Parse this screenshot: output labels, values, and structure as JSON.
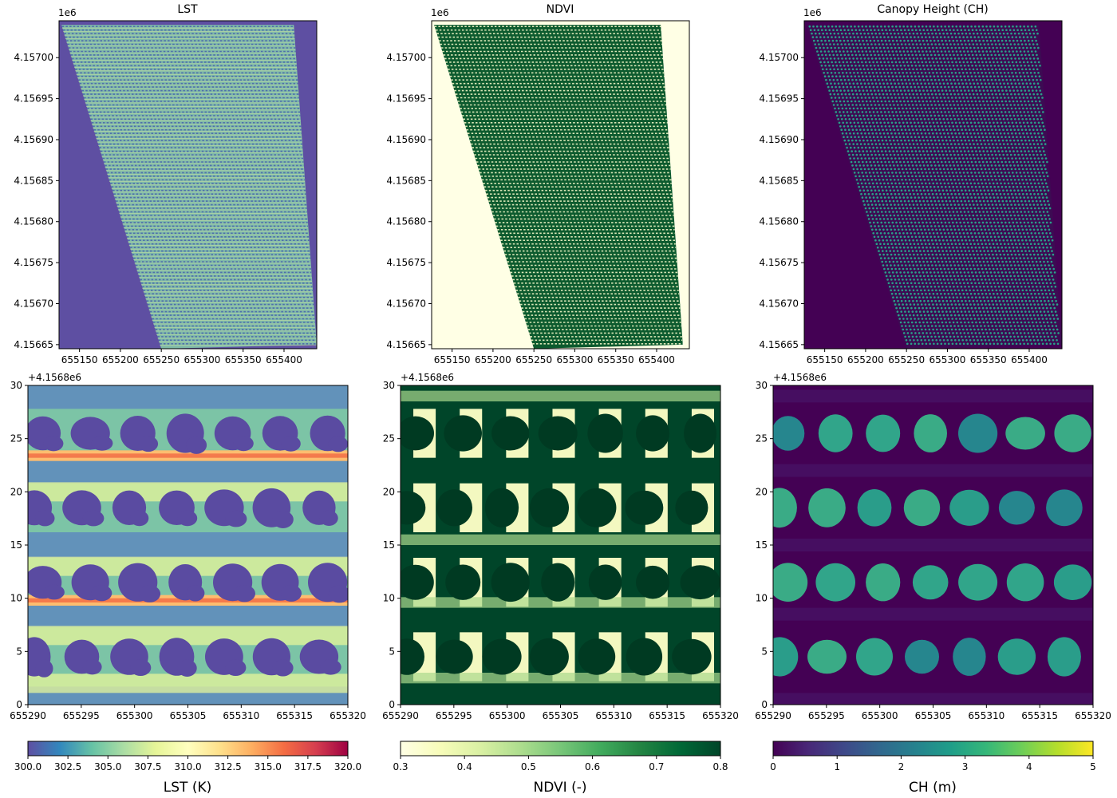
{
  "chart_data": [
    {
      "type": "heatmap",
      "title": "LST",
      "variable": "LST",
      "colormap": "Spectral_r",
      "x_ticks": [
        "655150",
        "655200",
        "655250",
        "655300",
        "655350",
        "655400"
      ],
      "y_ticks": [
        "4.15665",
        "4.15670",
        "4.15675",
        "4.15680",
        "4.15685",
        "4.15690",
        "4.15695",
        "4.15700"
      ],
      "y_offset_label": "1e6",
      "xlim": [
        655125,
        655440
      ],
      "ylim": [
        4156645,
        4157045
      ]
    },
    {
      "type": "heatmap",
      "title": "NDVI",
      "variable": "NDVI",
      "colormap": "YlGn",
      "x_ticks": [
        "655150",
        "655200",
        "655250",
        "655300",
        "655350",
        "655400"
      ],
      "y_ticks": [
        "4.15665",
        "4.15670",
        "4.15675",
        "4.15680",
        "4.15685",
        "4.15690",
        "4.15695",
        "4.15700"
      ],
      "y_offset_label": "1e6",
      "xlim": [
        655125,
        655440
      ],
      "ylim": [
        4156645,
        4157045
      ]
    },
    {
      "type": "heatmap",
      "title": "Canopy Height (CH)",
      "variable": "CH",
      "colormap": "viridis",
      "x_ticks": [
        "655150",
        "655200",
        "655250",
        "655300",
        "655350",
        "655400"
      ],
      "y_ticks": [
        "4.15665",
        "4.15670",
        "4.15675",
        "4.15680",
        "4.15685",
        "4.15690",
        "4.15695",
        "4.15700"
      ],
      "y_offset_label": "1e6",
      "xlim": [
        655125,
        655440
      ],
      "ylim": [
        4156645,
        4157045
      ]
    },
    {
      "type": "heatmap",
      "variable": "LST",
      "colormap": "Spectral_r",
      "x_ticks": [
        "655290",
        "655295",
        "655300",
        "655305",
        "655310",
        "655315",
        "655320"
      ],
      "y_ticks": [
        "0",
        "5",
        "10",
        "15",
        "20",
        "25",
        "30"
      ],
      "y_offset_label": "+4.1568e6",
      "xlim": [
        655290,
        655320
      ],
      "ylim": [
        0,
        30
      ],
      "colorbar": {
        "label": "LST (K)",
        "ticks": [
          "300.0",
          "302.5",
          "305.0",
          "307.5",
          "310.0",
          "312.5",
          "315.0",
          "317.5",
          "320.0"
        ],
        "range": [
          300,
          320
        ]
      }
    },
    {
      "type": "heatmap",
      "variable": "NDVI",
      "colormap": "YlGn",
      "x_ticks": [
        "655290",
        "655295",
        "655300",
        "655305",
        "655310",
        "655315",
        "655320"
      ],
      "y_ticks": [
        "0",
        "5",
        "10",
        "15",
        "20",
        "25",
        "30"
      ],
      "y_offset_label": "+4.1568e6",
      "xlim": [
        655290,
        655320
      ],
      "ylim": [
        0,
        30
      ],
      "colorbar": {
        "label": "NDVI (-)",
        "ticks": [
          "0.3",
          "0.4",
          "0.5",
          "0.6",
          "0.7",
          "0.8"
        ],
        "range": [
          0.3,
          0.8
        ]
      }
    },
    {
      "type": "heatmap",
      "variable": "CH",
      "colormap": "viridis",
      "x_ticks": [
        "655290",
        "655295",
        "655300",
        "655305",
        "655310",
        "655315",
        "655320"
      ],
      "y_ticks": [
        "0",
        "5",
        "10",
        "15",
        "20",
        "25",
        "30"
      ],
      "y_offset_label": "+4.1568e6",
      "xlim": [
        655290,
        655320
      ],
      "ylim": [
        0,
        30
      ],
      "colorbar": {
        "label": "CH (m)",
        "ticks": [
          "0",
          "1",
          "2",
          "3",
          "4",
          "5"
        ],
        "range": [
          0,
          5
        ]
      }
    }
  ],
  "colors": {
    "lst_background": "#5e4fa2",
    "ndvi_background": "#ffffe5",
    "ch_background": "#440154",
    "lst_scale": [
      "#5e4fa2",
      "#3288bd",
      "#66c2a5",
      "#abdda4",
      "#e6f598",
      "#ffffbf",
      "#fee08b",
      "#fdae61",
      "#f46d43",
      "#d53e4f",
      "#9e0142"
    ],
    "ndvi_scale": [
      "#ffffe5",
      "#f7fcb9",
      "#d9f0a3",
      "#addd8e",
      "#78c679",
      "#41ab5d",
      "#238443",
      "#006837",
      "#004529"
    ],
    "ch_scale": [
      "#440154",
      "#482878",
      "#3e4989",
      "#31688e",
      "#26828e",
      "#1f9e89",
      "#35b779",
      "#6ece58",
      "#b5de2b",
      "#fde725"
    ]
  }
}
